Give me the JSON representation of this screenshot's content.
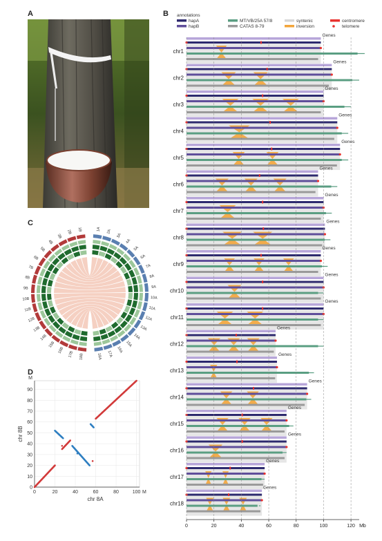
{
  "panels": {
    "a": {
      "letter": "A"
    },
    "b": {
      "letter": "B"
    },
    "c": {
      "letter": "C"
    },
    "d": {
      "letter": "D"
    }
  },
  "legend": {
    "title": "annotations",
    "items": [
      {
        "label": "hapA",
        "color": "#2d2a6e",
        "kind": "bar"
      },
      {
        "label": "hapB",
        "color": "#5f4e9a",
        "kind": "bar"
      },
      {
        "label": "MT/VB/25A 57/8",
        "color": "#5a9e82",
        "kind": "bar"
      },
      {
        "label": "CATAS 8-79",
        "color": "#9a9a9a",
        "kind": "bar"
      },
      {
        "label": "syntenic",
        "color": "#d7d7d7",
        "kind": "bar"
      },
      {
        "label": "inversion",
        "color": "#f3a53a",
        "kind": "bar"
      },
      {
        "label": "centromere",
        "color": "#e8322e",
        "kind": "bar"
      },
      {
        "label": "telomere",
        "color": "#e8322e",
        "kind": "dot"
      }
    ]
  },
  "colors": {
    "hapA": "#2d2a6e",
    "hapB": "#5f4e9a",
    "mt": "#5a9e82",
    "catas": "#9a9a9a",
    "genes": "#b7a6d9",
    "syntenic": "#d9d9d9",
    "inversion": "#f3a53a",
    "centromere": "#e8322e",
    "hapA_arc": "#b23a3a",
    "hapB_arc": "#5a7fb0",
    "ring_dark": "#1f6b2e",
    "ring_light": "#9cc79a",
    "link": "#f4cdbf"
  },
  "chart_data": [
    {
      "type": "genome-synteny",
      "genes_label": "Genes",
      "axis_unit": "Mb",
      "xticks": [
        0,
        20,
        40,
        60,
        80,
        100,
        120
      ],
      "xlim": [
        0,
        126
      ],
      "chromosomes": [
        {
          "name": "chr1",
          "length": 98,
          "mt_length": 130
        },
        {
          "name": "chr2",
          "length": 106,
          "mt_length": 126
        },
        {
          "name": "chr3",
          "length": 100,
          "mt_length": 120
        },
        {
          "name": "chr4",
          "length": 110,
          "mt_length": 118
        },
        {
          "name": "chr5",
          "length": 112,
          "mt_length": 118
        },
        {
          "name": "chr6",
          "length": 96,
          "mt_length": 110
        },
        {
          "name": "chr7",
          "length": 100,
          "mt_length": 106
        },
        {
          "name": "chr8",
          "length": 101,
          "mt_length": 105
        },
        {
          "name": "chr9",
          "length": 98,
          "mt_length": 103
        },
        {
          "name": "chr10",
          "length": 100,
          "mt_length": 100
        },
        {
          "name": "chr11",
          "length": 100,
          "mt_length": 100
        },
        {
          "name": "chr12",
          "length": 65,
          "mt_length": 100
        },
        {
          "name": "chr13",
          "length": 66,
          "mt_length": 93
        },
        {
          "name": "chr14",
          "length": 88,
          "mt_length": 91
        },
        {
          "name": "chr15",
          "length": 73,
          "mt_length": 78
        },
        {
          "name": "chr16",
          "length": 73,
          "mt_length": 73
        },
        {
          "name": "chr17",
          "length": 57,
          "mt_length": 57
        },
        {
          "name": "chr18",
          "length": 55,
          "mt_length": 54
        }
      ]
    },
    {
      "type": "circos",
      "hapA_labels": [
        "1A",
        "2A",
        "3A",
        "4A",
        "5A",
        "6A",
        "7A",
        "8A",
        "9A",
        "10A",
        "11A",
        "12A",
        "13A",
        "14A",
        "15A",
        "16A",
        "17A",
        "18A"
      ],
      "hapB_labels": [
        "18B",
        "17B",
        "16B",
        "15B",
        "14B",
        "13B",
        "12B",
        "11B",
        "10B",
        "9B",
        "8B",
        "7B",
        "6B",
        "5B",
        "4B",
        "3B",
        "2B",
        "1B"
      ]
    },
    {
      "type": "scatter",
      "xlabel": "chr 8A",
      "ylabel": "chr 8B",
      "xticks": [
        0,
        20,
        40,
        60,
        80,
        100
      ],
      "yticks": [
        0,
        10,
        20,
        30,
        40,
        50,
        60,
        70,
        80,
        90
      ],
      "x_unit": "M",
      "y_unit": "M",
      "xlim": [
        0,
        103
      ],
      "ylim": [
        0,
        98
      ],
      "series": [
        {
          "color": "#d23a3a",
          "segments": [
            [
              [
                0,
                0
              ],
              [
                20,
                20
              ]
            ],
            [
              [
                27,
                35
              ],
              [
                35,
                43
              ]
            ],
            [
              [
                60,
                63
              ],
              [
                100,
                98
              ]
            ]
          ]
        },
        {
          "color": "#2f7fc1",
          "segments": [
            [
              [
                20,
                52
              ],
              [
                28,
                45
              ]
            ],
            [
              [
                37,
                38
              ],
              [
                54,
                20
              ]
            ],
            [
              [
                55,
                58
              ],
              [
                58,
                55
              ]
            ]
          ]
        }
      ],
      "points": [
        {
          "x": 57,
          "y": 24,
          "color": "#d23a3a"
        },
        {
          "x": 42,
          "y": 31,
          "color": "#2f7fc1"
        },
        {
          "x": 27,
          "y": 38,
          "color": "#d23a3a"
        }
      ]
    }
  ]
}
